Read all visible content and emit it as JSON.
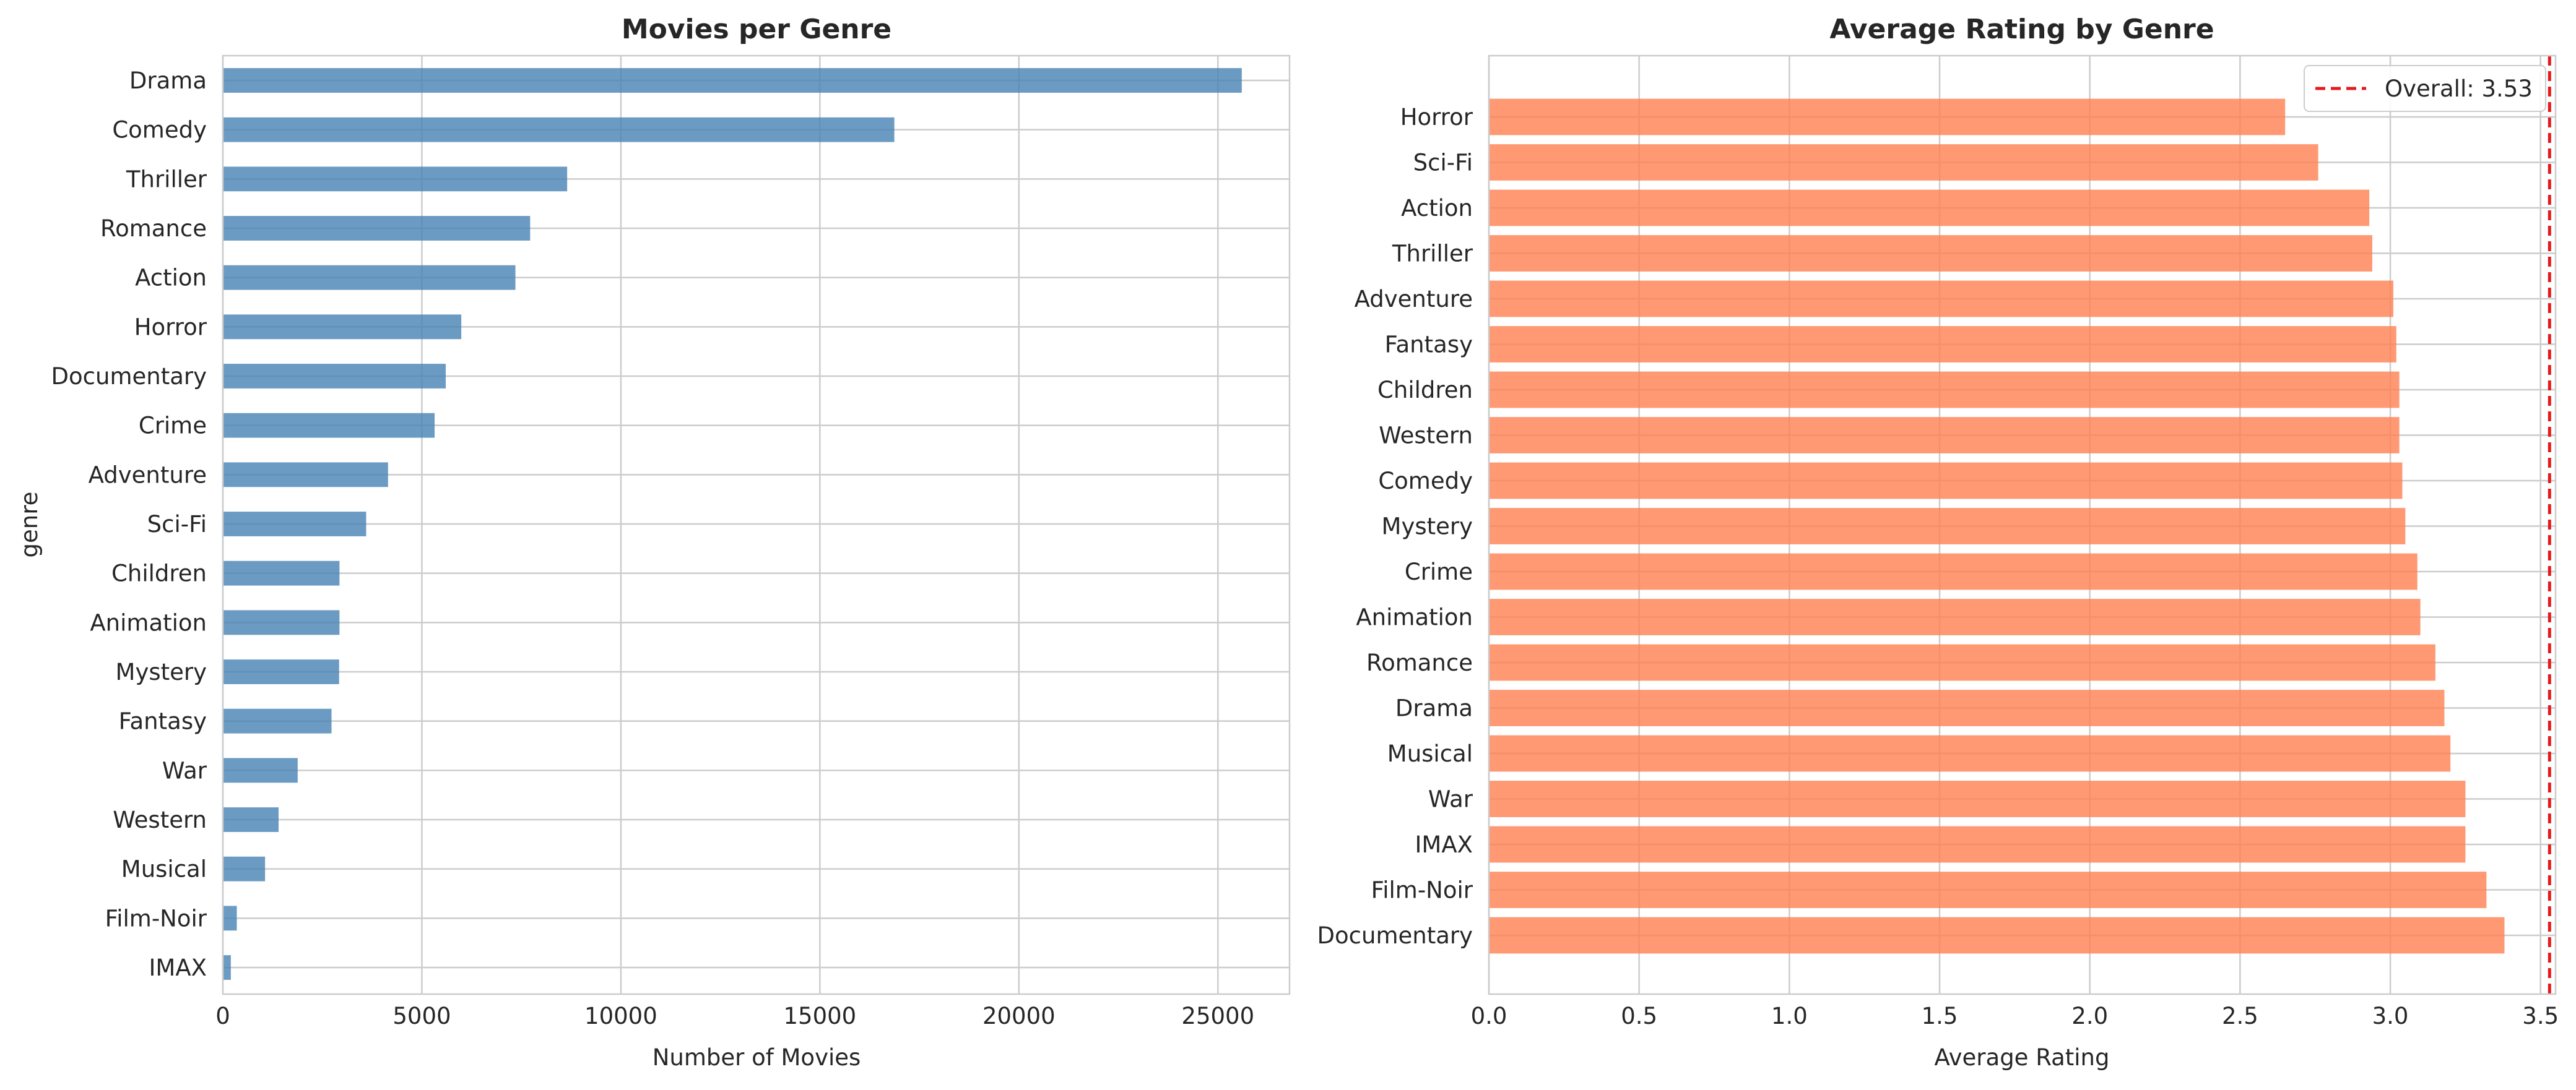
{
  "chart_data": [
    {
      "type": "bar",
      "orientation": "horizontal",
      "title": "Movies per Genre",
      "xlabel": "Number of Movies",
      "ylabel": "genre",
      "xlim": [
        0,
        26800
      ],
      "xticks": [
        0,
        5000,
        10000,
        15000,
        20000,
        25000
      ],
      "xtick_labels": [
        "0",
        "5000",
        "10000",
        "15000",
        "20000",
        "25000"
      ],
      "grid": true,
      "bar_color": "#4682b4",
      "categories": [
        "Drama",
        "Comedy",
        "Thriller",
        "Romance",
        "Action",
        "Horror",
        "Documentary",
        "Crime",
        "Adventure",
        "Sci-Fi",
        "Children",
        "Animation",
        "Mystery",
        "Fantasy",
        "War",
        "Western",
        "Musical",
        "Film-Noir",
        "IMAX"
      ],
      "values": [
        25600,
        16870,
        8650,
        7720,
        7350,
        5990,
        5600,
        5320,
        4150,
        3600,
        2930,
        2930,
        2920,
        2730,
        1880,
        1400,
        1060,
        350,
        200
      ]
    },
    {
      "type": "bar",
      "orientation": "horizontal",
      "title": "Average Rating by Genre",
      "xlabel": "Average Rating",
      "ylabel": "",
      "xlim": [
        0,
        3.55
      ],
      "xticks": [
        0.0,
        0.5,
        1.0,
        1.5,
        2.0,
        2.5,
        3.0,
        3.5
      ],
      "xtick_labels": [
        "0.0",
        "0.5",
        "1.0",
        "1.5",
        "2.0",
        "2.5",
        "3.0",
        "3.5"
      ],
      "grid": true,
      "bar_color": "#ff7f50",
      "categories": [
        "Horror",
        "Sci-Fi",
        "Action",
        "Thriller",
        "Adventure",
        "Fantasy",
        "Children",
        "Western",
        "Comedy",
        "Mystery",
        "Crime",
        "Animation",
        "Romance",
        "Drama",
        "Musical",
        "War",
        "IMAX",
        "Film-Noir",
        "Documentary"
      ],
      "values": [
        2.65,
        2.76,
        2.93,
        2.94,
        3.01,
        3.02,
        3.03,
        3.03,
        3.04,
        3.05,
        3.09,
        3.1,
        3.15,
        3.18,
        3.2,
        3.25,
        3.25,
        3.32,
        3.38
      ],
      "reference_line": {
        "label": "Overall: 3.53",
        "value": 3.53,
        "color": "#e41a1c",
        "style": "dashed"
      },
      "legend_position": "top-right"
    }
  ]
}
